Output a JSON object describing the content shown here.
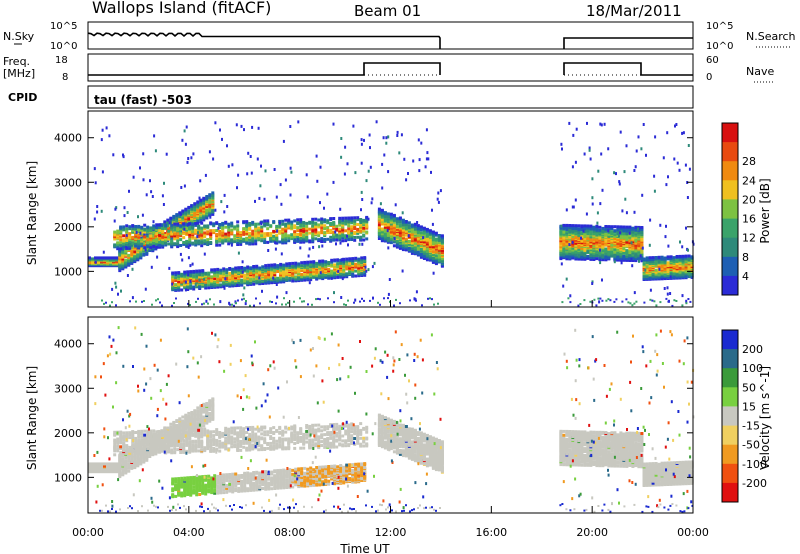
{
  "header": {
    "title": "Wallops Island (fitACF)",
    "beam": "Beam 01",
    "date": "18/Mar/2011"
  },
  "top_panels": {
    "nsky_label": "N.Sky",
    "nsky_ticks": [
      "10^5",
      "10^0"
    ],
    "nsearch_label": "N.Search",
    "nsearch_ticks": [
      "10^5",
      "10^0"
    ],
    "freq_label": "Freq.",
    "freq_unit": "[MHz]",
    "freq_ticks": [
      "18",
      "8"
    ],
    "nave_label": "Nave",
    "nave_ticks": [
      "60",
      "0"
    ],
    "cpid_label": "CPID",
    "cpid_text": "tau (fast) -503"
  },
  "colors": {
    "power": [
      "#2b2bd6",
      "#1e5fb3",
      "#2e8a7a",
      "#3aa36a",
      "#7dc242",
      "#f0c020",
      "#f08a10",
      "#e84a10",
      "#d81010"
    ],
    "velocity": [
      "#e01010",
      "#f05010",
      "#f09a20",
      "#f0d060",
      "#c8c8c0",
      "#78d040",
      "#3a9a3a",
      "#2a6a8a",
      "#1a2ad0"
    ]
  },
  "chart_data": [
    {
      "type": "heatmap",
      "title": "",
      "ylabel": "Slant Range [km]",
      "xlabel": "Time UT",
      "ylim": [
        200,
        4600
      ],
      "yticks": [
        "1000",
        "2000",
        "3000",
        "4000"
      ],
      "xticks": [
        "00:00",
        "04:00",
        "08:00",
        "12:00",
        "16:00",
        "20:00",
        "00:00"
      ],
      "colorbar_label": "Power [dB]",
      "colorbar_ticks": [
        "4",
        "8",
        "12",
        "16",
        "20",
        "24",
        "28"
      ],
      "colorbar_range": [
        0,
        32
      ],
      "data_gap_hours": [
        14,
        18.7
      ]
    },
    {
      "type": "heatmap",
      "title": "",
      "ylabel": "Slant Range [km]",
      "xlabel": "Time UT",
      "ylim": [
        200,
        4600
      ],
      "yticks": [
        "1000",
        "2000",
        "3000",
        "4000"
      ],
      "xticks": [
        "00:00",
        "04:00",
        "08:00",
        "12:00",
        "16:00",
        "20:00",
        "00:00"
      ],
      "colorbar_label": "Velocity [m s^-1]",
      "colorbar_ticks": [
        "-200",
        "-100",
        "-50",
        "-15",
        "15",
        "50",
        "100",
        "200"
      ],
      "data_gap_hours": [
        14,
        18.7
      ]
    }
  ]
}
